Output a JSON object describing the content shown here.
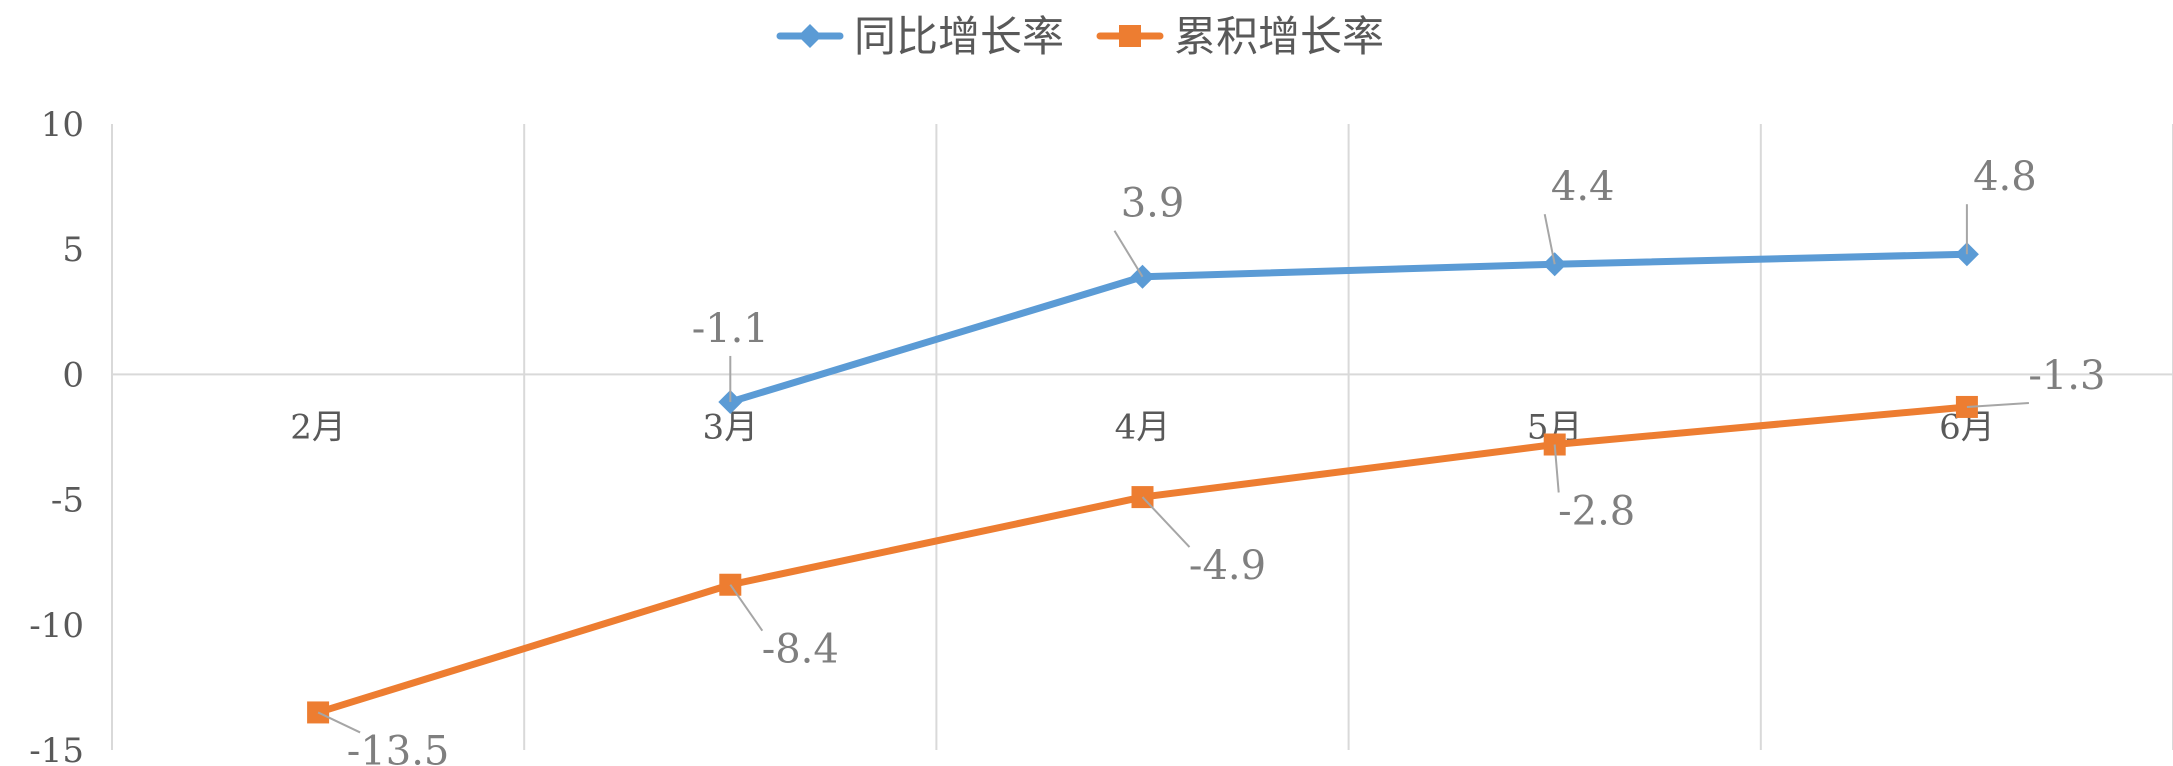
{
  "chart_data": {
    "type": "line",
    "categories": [
      "2月",
      "3月",
      "4月",
      "5月",
      "6月"
    ],
    "series": [
      {
        "name": "同比增长率",
        "values": [
          null,
          -1.1,
          3.9,
          4.4,
          4.8
        ],
        "labels": [
          "",
          "-1.1",
          "3.9",
          "4.4",
          "4.8"
        ],
        "color": "#5b9bd5",
        "marker": "diamond"
      },
      {
        "name": "累积增长率",
        "values": [
          -13.5,
          -8.4,
          -4.9,
          -2.8,
          -1.3
        ],
        "labels": [
          "-13.5",
          "-8.4",
          "-4.9",
          "-2.8",
          "-1.3"
        ],
        "color": "#ed7d31",
        "marker": "square"
      }
    ],
    "y_ticks": [
      "10",
      "5",
      "0",
      "-5",
      "-10",
      "-15"
    ],
    "ylim": [
      -15,
      10
    ],
    "grid": "vertical",
    "legend_position": "top-center"
  }
}
